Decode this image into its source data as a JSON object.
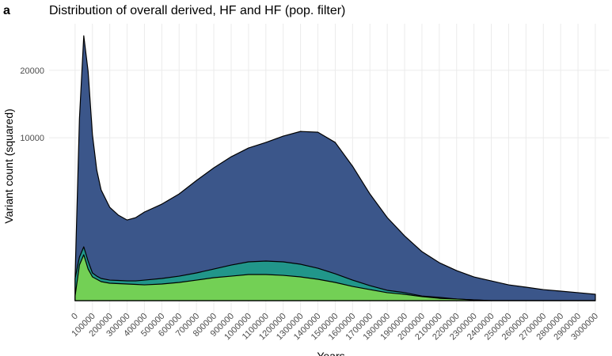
{
  "chart_data": {
    "type": "area",
    "panel_label": "a",
    "title": "Distribution of overall derived, HF and HF (pop. filter)",
    "x_label": "Years",
    "y_label": "Variant count (squared)",
    "y_scale": "sqrt",
    "grid": true,
    "x": [
      0,
      25000,
      50000,
      75000,
      100000,
      125000,
      150000,
      200000,
      250000,
      300000,
      350000,
      400000,
      500000,
      600000,
      700000,
      800000,
      900000,
      1000000,
      1100000,
      1200000,
      1300000,
      1400000,
      1500000,
      1600000,
      1700000,
      1800000,
      1900000,
      2000000,
      2100000,
      2200000,
      2300000,
      2400000,
      2500000,
      2600000,
      2700000,
      2800000,
      2900000,
      3000000
    ],
    "series": [
      {
        "color": "#3b568a",
        "values": [
          212,
          12470,
          26450,
          19820,
          10390,
          6420,
          4620,
          3280,
          2750,
          2450,
          2600,
          2960,
          3510,
          4290,
          5440,
          6650,
          7800,
          8780,
          9430,
          10200,
          10790,
          10690,
          9430,
          6810,
          4290,
          2600,
          1580,
          906,
          543,
          340,
          212,
          147,
          94,
          68,
          46,
          34,
          24,
          15
        ]
      },
      {
        "color": "#21968a",
        "values": [
          185,
          713,
          1090,
          589,
          289,
          226,
          185,
          159,
          153,
          147,
          147,
          159,
          185,
          226,
          289,
          377,
          477,
          566,
          589,
          566,
          499,
          396,
          272,
          159,
          85,
          40,
          24,
          8,
          4,
          1,
          0.2,
          0,
          0,
          0,
          0,
          0,
          0,
          0
        ]
      },
      {
        "color": "#73d055",
        "values": [
          8,
          477,
          793,
          377,
          212,
          172,
          136,
          114,
          109,
          104,
          99,
          94,
          104,
          125,
          159,
          198,
          226,
          257,
          257,
          241,
          212,
          172,
          125,
          76,
          46,
          24,
          15,
          6,
          2,
          1,
          0.2,
          0,
          0,
          0,
          0,
          0,
          0,
          0
        ]
      }
    ],
    "xlim": [
      -150000,
      3080000
    ],
    "xticks": [
      0,
      100000,
      200000,
      300000,
      400000,
      500000,
      600000,
      700000,
      800000,
      900000,
      1000000,
      1100000,
      1200000,
      1300000,
      1400000,
      1500000,
      1600000,
      1700000,
      1800000,
      1900000,
      2000000,
      2100000,
      2200000,
      2300000,
      2400000,
      2500000,
      2600000,
      2700000,
      2800000,
      2900000,
      3000000
    ],
    "ylim": [
      0,
      28900
    ],
    "yticks": [
      10000,
      20000
    ]
  }
}
